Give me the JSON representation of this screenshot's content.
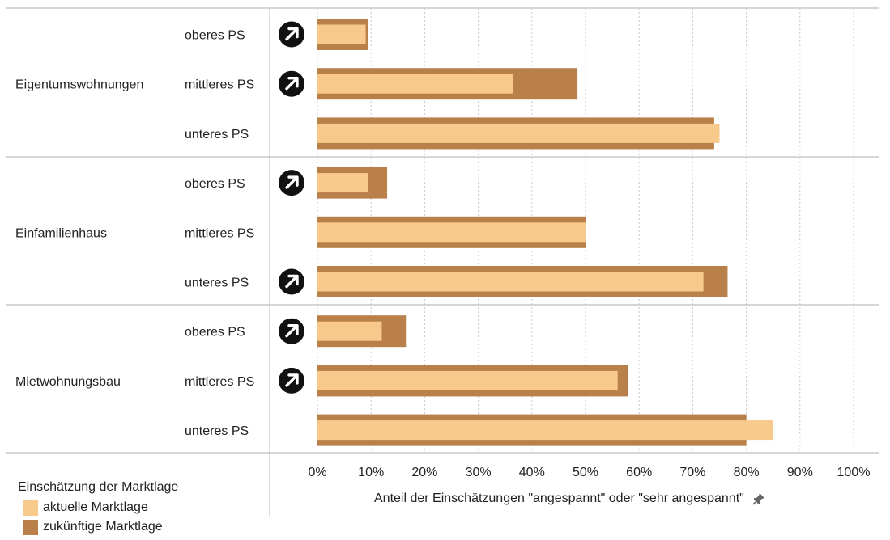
{
  "chart_data": {
    "type": "bar",
    "orientation": "horizontal",
    "groups": [
      {
        "name": "Eigentumswohnungen",
        "rows": [
          {
            "label": "oberes PS",
            "current": 9,
            "future": 9.5,
            "trend": true
          },
          {
            "label": "mittleres PS",
            "current": 36.5,
            "future": 48.5,
            "trend": true
          },
          {
            "label": "unteres PS",
            "current": 75,
            "future": 74,
            "trend": false
          }
        ]
      },
      {
        "name": "Einfamilienhaus",
        "rows": [
          {
            "label": "oberes PS",
            "current": 9.5,
            "future": 13,
            "trend": true
          },
          {
            "label": "mittleres PS",
            "current": 50,
            "future": 50,
            "trend": false
          },
          {
            "label": "unteres PS",
            "current": 72,
            "future": 76.5,
            "trend": true
          }
        ]
      },
      {
        "name": "Mietwohnungsbau",
        "rows": [
          {
            "label": "oberes PS",
            "current": 12,
            "future": 16.5,
            "trend": true
          },
          {
            "label": "mittleres PS",
            "current": 56,
            "future": 58,
            "trend": true
          },
          {
            "label": "unteres PS",
            "current": 85,
            "future": 80,
            "trend": false
          }
        ]
      }
    ],
    "series": [
      {
        "name": "aktuelle Marktlage",
        "key": "current",
        "color": "#f7c98a"
      },
      {
        "name": "zukünftige Marktlage",
        "key": "future",
        "color": "#b9804a"
      }
    ],
    "xlim": [
      0,
      100
    ],
    "xticks": [
      "0%",
      "10%",
      "20%",
      "30%",
      "40%",
      "50%",
      "60%",
      "70%",
      "80%",
      "90%",
      "100%"
    ],
    "xlabel": "Anteil der Einschätzungen \"angespannt\" oder \"sehr angespannt\"",
    "legend_title": "Einschätzung der Marktlage",
    "legend_position": "bottom-left",
    "grid": true,
    "trend_icon": "arrow-up-right-icon"
  }
}
